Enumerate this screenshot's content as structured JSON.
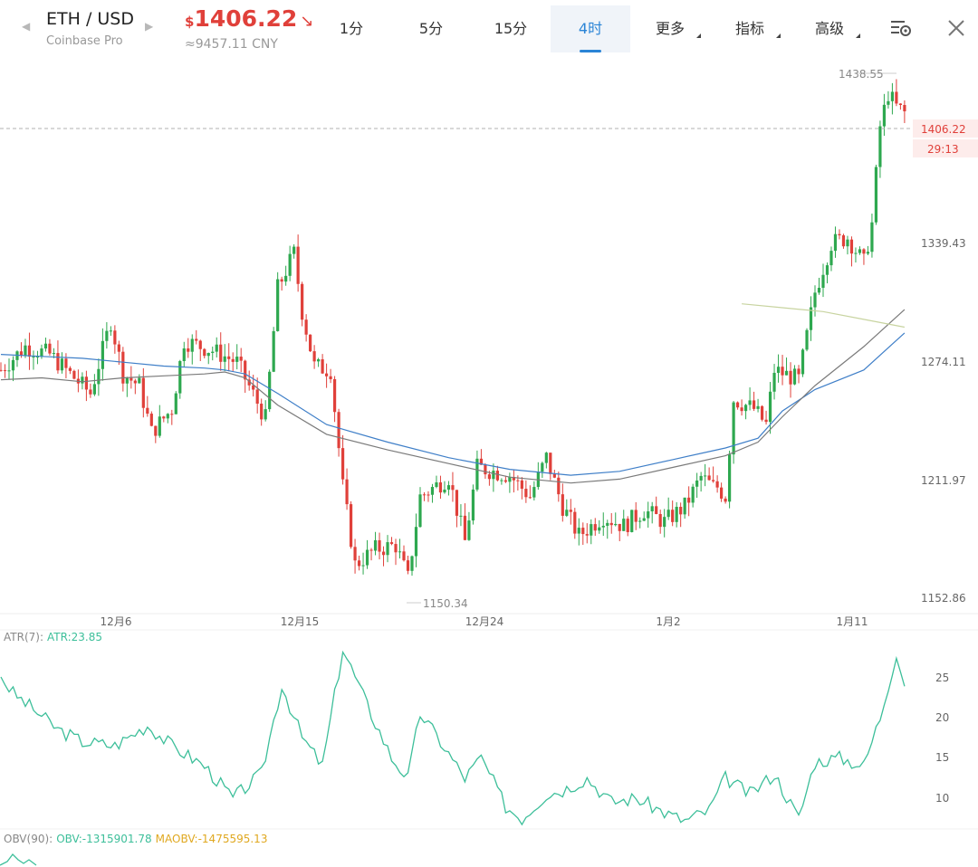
{
  "header": {
    "pair": "ETH / USD",
    "exchange": "Coinbase Pro",
    "price_currency": "$",
    "price": "1406.22",
    "price_cny": "≈9457.11 CNY",
    "down_color": "#e0403a",
    "up_color": "#2ea84f",
    "icons": {
      "prev": "caret-left-icon",
      "next": "caret-right-icon",
      "trend": "trend-down-icon",
      "settings": "chart-settings-icon",
      "close": "close-icon"
    }
  },
  "tabs": [
    {
      "label": "1分",
      "active": false,
      "dropdown": false
    },
    {
      "label": "5分",
      "active": false,
      "dropdown": false
    },
    {
      "label": "15分",
      "active": false,
      "dropdown": false
    },
    {
      "label": "4时",
      "active": true,
      "dropdown": false
    },
    {
      "label": "更多",
      "active": false,
      "dropdown": true
    },
    {
      "label": "指标",
      "active": false,
      "dropdown": true
    },
    {
      "label": "高级",
      "active": false,
      "dropdown": true
    }
  ],
  "main_chart": {
    "price_axis": [
      "1339.43",
      "1274.11",
      "1211.97",
      "1152.86"
    ],
    "current_price_tag": "1406.22",
    "countdown_tag": "29:13",
    "high_label": "1438.55",
    "low_label": "1150.34",
    "date_labels": [
      "12月6",
      "12月15",
      "12月24",
      "1月2",
      "1月11"
    ]
  },
  "atr_panel": {
    "name": "ATR(7):",
    "value": "ATR:23.85",
    "axis": [
      "25",
      "20",
      "15",
      "10"
    ],
    "color": "#3dbf9a"
  },
  "obv_panel": {
    "name": "OBV(90):",
    "obv_value": "OBV:-1315901.78",
    "maobv_value": "MAOBV:-1475595.13",
    "obv_color": "#3dbf9a",
    "maobv_color": "#e0a820"
  },
  "chart_data": [
    {
      "type": "candlestick",
      "title": "",
      "interval": "4时",
      "y_range": [
        1140,
        1445
      ],
      "y_ticks": [
        1339.43,
        1274.11,
        1211.97,
        1152.86
      ],
      "x_ticks": [
        "12月6",
        "12月15",
        "12月24",
        "1月2",
        "1月11"
      ],
      "high": 1438.55,
      "low": 1150.34,
      "last": 1406.22,
      "series": [
        {
          "name": "",
          "type": "line",
          "color": "#3f7fc8",
          "points": [
            [
              0,
              1278
            ],
            [
              10,
              1277
            ],
            [
              20,
              1276
            ],
            [
              30,
              1274
            ],
            [
              40,
              1272
            ],
            [
              50,
              1271
            ],
            [
              55,
              1270
            ],
            [
              60,
              1268
            ],
            [
              68,
              1258
            ],
            [
              80,
              1242
            ],
            [
              95,
              1233
            ],
            [
              110,
              1225
            ],
            [
              125,
              1219
            ],
            [
              140,
              1216
            ],
            [
              152,
              1218
            ],
            [
              165,
              1224
            ],
            [
              178,
              1230
            ],
            [
              186,
              1235
            ],
            [
              192,
              1249
            ],
            [
              200,
              1260
            ],
            [
              212,
              1270
            ],
            [
              222,
              1289
            ]
          ]
        },
        {
          "name": "",
          "type": "line",
          "color": "#7a7a7a",
          "points": [
            [
              0,
              1265
            ],
            [
              10,
              1266
            ],
            [
              20,
              1264
            ],
            [
              30,
              1266
            ],
            [
              40,
              1267
            ],
            [
              50,
              1268
            ],
            [
              55,
              1269
            ],
            [
              60,
              1266
            ],
            [
              68,
              1252
            ],
            [
              80,
              1237
            ],
            [
              95,
              1229
            ],
            [
              110,
              1222
            ],
            [
              125,
              1215
            ],
            [
              140,
              1212
            ],
            [
              152,
              1214
            ],
            [
              165,
              1220
            ],
            [
              178,
              1226
            ],
            [
              186,
              1233
            ],
            [
              192,
              1246
            ],
            [
              200,
              1262
            ],
            [
              212,
              1282
            ],
            [
              222,
              1301
            ]
          ]
        },
        {
          "name": "",
          "type": "line",
          "color": "#c8d4a0",
          "points": [
            [
              182,
              1304
            ],
            [
              192,
              1302
            ],
            [
              202,
              1300
            ],
            [
              212,
              1296
            ],
            [
              222,
              1292
            ]
          ]
        }
      ]
    },
    {
      "type": "line",
      "title": "ATR(7)",
      "y_range": [
        6.5,
        29.5
      ],
      "y_ticks": [
        25,
        20,
        15,
        10
      ],
      "series": [
        {
          "name": "ATR",
          "last": 23.85,
          "color": "#3dbf9a"
        }
      ]
    },
    {
      "type": "line",
      "title": "OBV(90)",
      "series": [
        {
          "name": "OBV",
          "last": -1315901.78,
          "color": "#3dbf9a"
        },
        {
          "name": "MAOBV",
          "last": -1475595.13,
          "color": "#e0a820"
        }
      ]
    }
  ]
}
